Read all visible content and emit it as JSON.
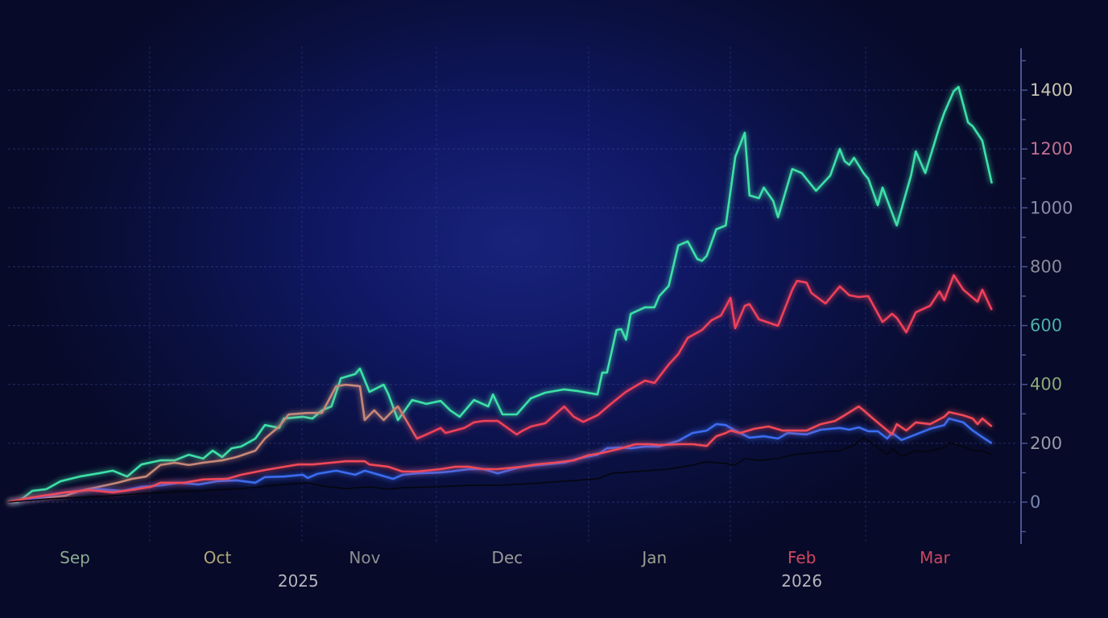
{
  "chart_data": {
    "type": "line",
    "title": "",
    "xlabel": "",
    "ylabel": "",
    "x_units": "days since 2025-09-01",
    "ylim": [
      -130,
      1540
    ],
    "xlim": [
      -14,
      193
    ],
    "grid": true,
    "legend": "none",
    "y_ticks": [
      {
        "value": 0,
        "label": "0",
        "color": "#7a88b0"
      },
      {
        "value": 200,
        "label": "200",
        "color": "#9a9aa8"
      },
      {
        "value": 400,
        "label": "400",
        "color": "#8aaa78"
      },
      {
        "value": 600,
        "label": "600",
        "color": "#4ab0a8"
      },
      {
        "value": 800,
        "label": "800",
        "color": "#8a8c9a"
      },
      {
        "value": 1000,
        "label": "1000",
        "color": "#8a8ca8"
      },
      {
        "value": 1200,
        "label": "1200",
        "color": "#c07090"
      },
      {
        "value": 1400,
        "label": "1400",
        "color": "#c8c4b0"
      }
    ],
    "x_ticks": [
      {
        "day": 0,
        "label": "Sep",
        "color": "#8aaa90"
      },
      {
        "day": 30,
        "label": "Oct",
        "color": "#b0a878"
      },
      {
        "day": 61,
        "label": "Nov",
        "color": "#8a9090"
      },
      {
        "day": 91,
        "label": "Dec",
        "color": "#9a9a9a"
      },
      {
        "day": 122,
        "label": "Jan",
        "color": "#9aa090"
      },
      {
        "day": 153,
        "label": "Feb",
        "color": "#d04860"
      },
      {
        "day": 181,
        "label": "Mar",
        "color": "#c84860"
      }
    ],
    "year_labels": [
      {
        "day": 47,
        "label": "2025"
      },
      {
        "day": 153,
        "label": "2026"
      }
    ],
    "series": [
      {
        "name": "teal",
        "color": "#3ee0a8",
        "x": [
          -14,
          -12,
          -9,
          -6,
          -3,
          1,
          5,
          8,
          11,
          14,
          18,
          21,
          24,
          27,
          29,
          31,
          33,
          35,
          38,
          40,
          43,
          44,
          48,
          50,
          52,
          54,
          56,
          59,
          60,
          62,
          65,
          66,
          68,
          71,
          74,
          77,
          79,
          81,
          84,
          87,
          88,
          90,
          93,
          96,
          99,
          103,
          106,
          110,
          111,
          112,
          114,
          115,
          116,
          117,
          120,
          122,
          123,
          125,
          127,
          129,
          131,
          132,
          133,
          135,
          137,
          139,
          141,
          142,
          144,
          145,
          147,
          148,
          151,
          153,
          156,
          159,
          161,
          162,
          163,
          164,
          166,
          167,
          169,
          170,
          173,
          176,
          177,
          179,
          182,
          183,
          185,
          186,
          188,
          189,
          191,
          193
        ],
        "values": [
          0,
          0,
          38,
          44,
          71,
          87,
          98,
          107,
          87,
          128,
          142,
          142,
          161,
          148,
          175,
          153,
          183,
          189,
          216,
          262,
          252,
          284,
          290,
          284,
          312,
          325,
          421,
          435,
          454,
          375,
          399,
          366,
          279,
          347,
          334,
          344,
          312,
          290,
          347,
          325,
          366,
          298,
          298,
          353,
          372,
          383,
          377,
          366,
          440,
          440,
          585,
          588,
          552,
          640,
          662,
          662,
          700,
          735,
          872,
          886,
          826,
          820,
          837,
          927,
          940,
          1173,
          1255,
          1042,
          1033,
          1069,
          1023,
          968,
          1132,
          1118,
          1058,
          1110,
          1200,
          1159,
          1146,
          1170,
          1118,
          1099,
          1009,
          1069,
          940,
          1110,
          1192,
          1118,
          1277,
          1323,
          1397,
          1411,
          1290,
          1277,
          1228,
          1083
        ]
      },
      {
        "name": "red-upper",
        "color": "#f0405a",
        "early_color": "#c88878",
        "x": [
          -14,
          -9,
          -2,
          1,
          5,
          9,
          12,
          15,
          18,
          21,
          24,
          27,
          31,
          34,
          38,
          40,
          43,
          45,
          49,
          52,
          55,
          57,
          60,
          61,
          63,
          65,
          67,
          68,
          70,
          72,
          74,
          77,
          78,
          82,
          84,
          86,
          89,
          93,
          94,
          96,
          99,
          103,
          105,
          107,
          110,
          113,
          116,
          118,
          120,
          122,
          123,
          125,
          127,
          129,
          132,
          134,
          136,
          138,
          139,
          141,
          142,
          144,
          148,
          151,
          152,
          154,
          155,
          158,
          161,
          163,
          165,
          167,
          170,
          172,
          173,
          175,
          177,
          180,
          182,
          183,
          185,
          187,
          190,
          191,
          193
        ],
        "values": [
          0,
          11,
          22,
          38,
          52,
          66,
          79,
          87,
          126,
          134,
          126,
          134,
          142,
          153,
          175,
          216,
          257,
          298,
          303,
          303,
          394,
          399,
          394,
          279,
          312,
          279,
          312,
          325,
          271,
          216,
          230,
          252,
          235,
          252,
          271,
          276,
          276,
          230,
          241,
          257,
          268,
          325,
          290,
          273,
          295,
          336,
          375,
          394,
          413,
          405,
          426,
          468,
          503,
          558,
          585,
          618,
          634,
          694,
          591,
          667,
          673,
          621,
          599,
          722,
          752,
          746,
          711,
          675,
          733,
          703,
          697,
          700,
          612,
          640,
          626,
          577,
          645,
          667,
          716,
          686,
          771,
          722,
          681,
          722,
          653
        ]
      },
      {
        "name": "blue",
        "color": "#3a6cf0",
        "x": [
          -14,
          -9,
          -2,
          5,
          10,
          14,
          18,
          22,
          26,
          30,
          34,
          38,
          40,
          44,
          48,
          49,
          51,
          55,
          59,
          61,
          64,
          67,
          69,
          72,
          77,
          79,
          83,
          86,
          89,
          94,
          99,
          103,
          106,
          110,
          112,
          115,
          117,
          120,
          123,
          127,
          130,
          133,
          135,
          137,
          139,
          142,
          145,
          148,
          150,
          154,
          157,
          161,
          163,
          165,
          167,
          169,
          171,
          172,
          174,
          177,
          180,
          183,
          184,
          187,
          189,
          191,
          193
        ],
        "values": [
          0,
          11,
          33,
          44,
          38,
          52,
          57,
          66,
          60,
          71,
          74,
          66,
          85,
          87,
          93,
          82,
          96,
          107,
          93,
          107,
          93,
          79,
          93,
          98,
          101,
          104,
          112,
          112,
          98,
          120,
          128,
          134,
          148,
          161,
          183,
          186,
          183,
          189,
          189,
          208,
          235,
          243,
          265,
          262,
          243,
          219,
          224,
          216,
          235,
          230,
          246,
          252,
          246,
          254,
          241,
          241,
          216,
          235,
          211,
          230,
          249,
          262,
          284,
          271,
          243,
          221,
          200
        ]
      },
      {
        "name": "red-lower",
        "color": "#f04858",
        "x": [
          -14,
          -9,
          -2,
          3,
          8,
          13,
          16,
          18,
          23,
          27,
          32,
          35,
          40,
          44,
          47,
          50,
          54,
          57,
          61,
          62,
          66,
          69,
          72,
          77,
          80,
          83,
          86,
          89,
          94,
          97,
          101,
          105,
          108,
          111,
          115,
          118,
          121,
          123,
          127,
          130,
          133,
          135,
          137,
          138,
          140,
          143,
          146,
          149,
          154,
          157,
          160,
          162,
          165,
          166,
          168,
          170,
          172,
          173,
          175,
          177,
          180,
          183,
          184,
          187,
          189,
          190,
          191,
          193
        ],
        "values": [
          0,
          16,
          33,
          41,
          33,
          44,
          52,
          66,
          66,
          77,
          79,
          93,
          109,
          120,
          128,
          128,
          134,
          139,
          139,
          128,
          120,
          104,
          104,
          112,
          120,
          120,
          112,
          112,
          120,
          128,
          134,
          142,
          159,
          167,
          183,
          197,
          197,
          194,
          197,
          197,
          191,
          224,
          235,
          243,
          235,
          249,
          257,
          243,
          243,
          265,
          276,
          295,
          325,
          312,
          284,
          257,
          230,
          265,
          243,
          271,
          265,
          290,
          306,
          295,
          284,
          265,
          284,
          257
        ]
      },
      {
        "name": "black",
        "color": "#05060e",
        "x": [
          -14,
          -6,
          5,
          15,
          25,
          35,
          42,
          49,
          52,
          57,
          62,
          66,
          69,
          76,
          83,
          89,
          96,
          103,
          110,
          113,
          118,
          125,
          130,
          133,
          137,
          139,
          141,
          144,
          148,
          151,
          155,
          161,
          164,
          166,
          167,
          169,
          171,
          172,
          174,
          177,
          179,
          183,
          184,
          187,
          189,
          191,
          193
        ],
        "values": [
          0,
          11,
          19,
          30,
          38,
          46,
          57,
          66,
          55,
          46,
          52,
          44,
          49,
          52,
          57,
          57,
          63,
          71,
          79,
          98,
          104,
          112,
          126,
          137,
          131,
          126,
          148,
          142,
          148,
          161,
          167,
          175,
          194,
          219,
          208,
          186,
          161,
          183,
          156,
          175,
          170,
          186,
          202,
          189,
          175,
          175,
          161
        ]
      }
    ]
  }
}
